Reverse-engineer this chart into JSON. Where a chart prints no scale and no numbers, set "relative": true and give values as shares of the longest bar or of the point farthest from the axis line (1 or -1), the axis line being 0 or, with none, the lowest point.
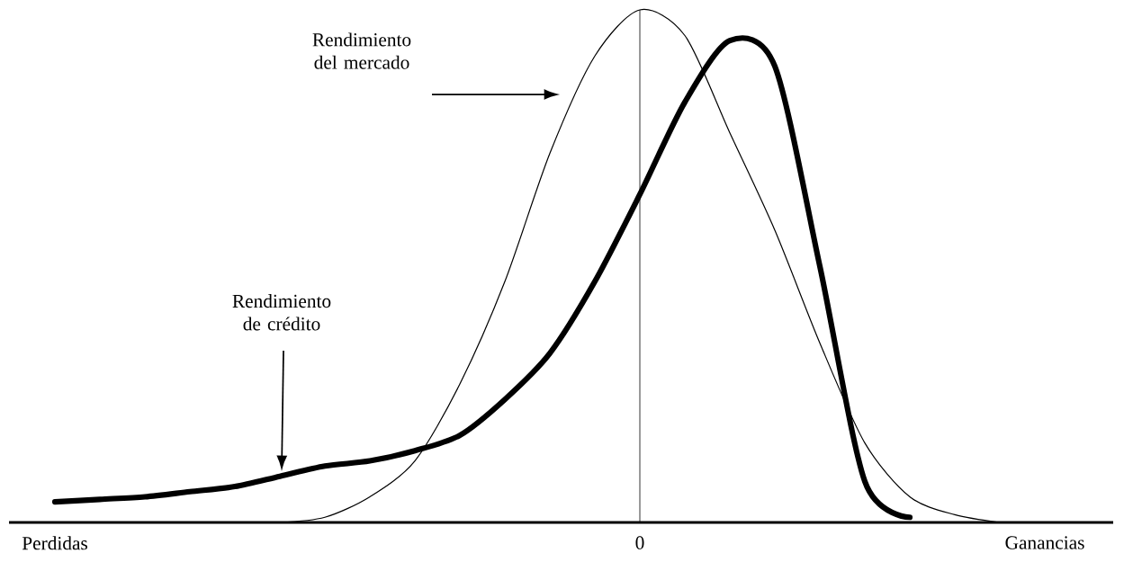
{
  "chart_data": {
    "type": "line",
    "relative": true,
    "categories": [
      null,
      "Perdidas",
      null,
      null,
      null,
      null,
      null,
      null,
      null,
      null,
      null,
      null,
      null,
      null,
      "0",
      null,
      null,
      null,
      null,
      null,
      null,
      null,
      null,
      "Ganancias",
      null
    ],
    "series": [
      {
        "color": "#000000",
        "values": [
          null,
          null,
          null,
          null,
          null,
          null,
          0,
          0.01,
          0.05,
          0.12,
          0.27,
          0.47,
          0.72,
          0.91,
          1.0,
          0.95,
          0.76,
          0.57,
          0.35,
          0.155,
          0.05,
          0.015,
          0,
          null,
          null
        ]
      },
      {
        "color": "#000000",
        "values": [
          null,
          0.04,
          0.045,
          0.05,
          0.06,
          0.07,
          0.09,
          0.11,
          0.12,
          0.14,
          0.17,
          0.24,
          0.33,
          0.47,
          0.64,
          0.82,
          0.94,
          0.89,
          0.5,
          0.08,
          0.01,
          null,
          null,
          null,
          null
        ]
      }
    ],
    "ref_lines": [
      {
        "axis": "x",
        "value": "0"
      }
    ],
    "annotations": [
      "Rendimiento del mercado",
      "Rendimiento de crédito"
    ]
  }
}
